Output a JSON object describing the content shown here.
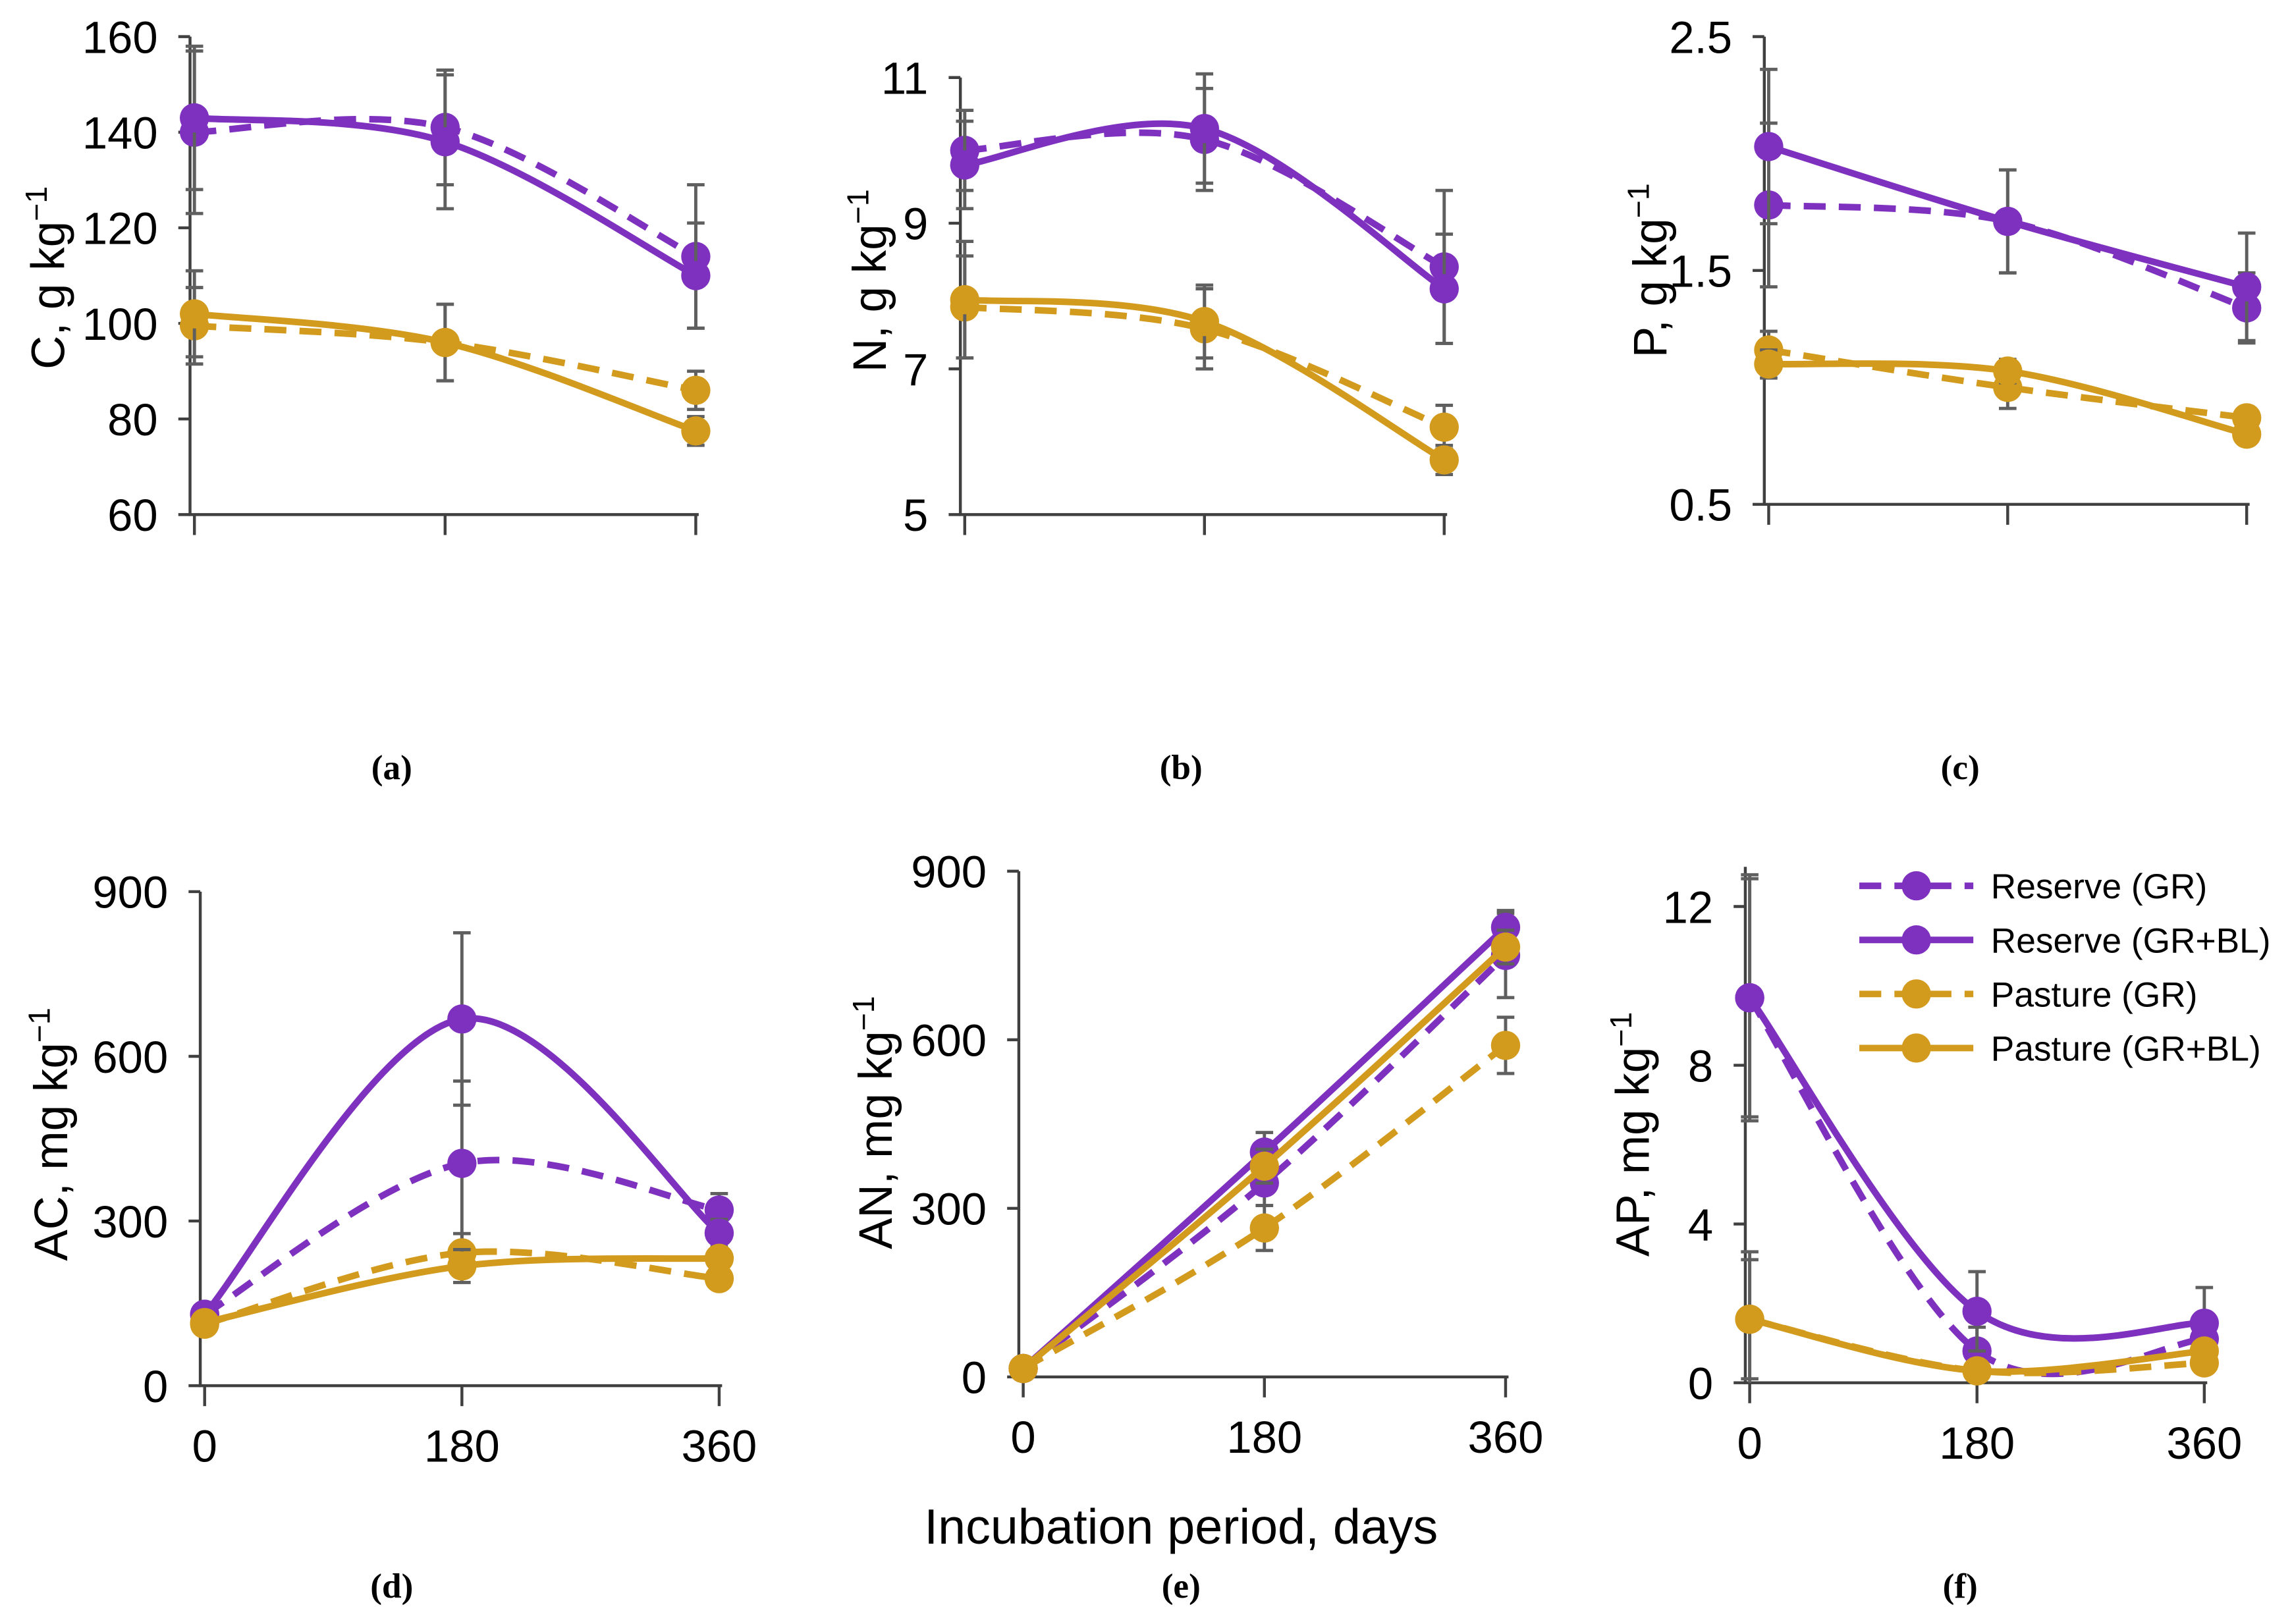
{
  "xlabel": "Incubation period, days",
  "legend": {
    "items": [
      {
        "name": "Reserve (GR)",
        "color": "#7e30be",
        "dashed": true
      },
      {
        "name": "Reserve (GR+BL)",
        "color": "#7e30be",
        "dashed": false
      },
      {
        "name": "Pasture (GR)",
        "color": "#d39b1e",
        "dashed": true
      },
      {
        "name": "Pasture (GR+BL)",
        "color": "#d39b1e",
        "dashed": false
      }
    ]
  },
  "chart_data": [
    {
      "type": "line",
      "panel_label": "(a)",
      "ylabel": "C, g kg",
      "ylabel_sup": "−1",
      "x": [
        0,
        180,
        360
      ],
      "ylim": [
        60,
        160
      ],
      "yticks": [
        60,
        80,
        100,
        120,
        140,
        160
      ],
      "series": [
        {
          "values": [
            140,
            141,
            114
          ],
          "errors": [
            17,
            12,
            15
          ]
        },
        {
          "values": [
            143,
            138,
            110
          ],
          "errors": [
            15,
            14,
            11
          ]
        },
        {
          "values": [
            99.5,
            96,
            86
          ],
          "errors": [
            8,
            8,
            4
          ]
        },
        {
          "values": [
            102,
            96,
            77.5
          ],
          "errors": [
            9,
            8,
            3
          ]
        }
      ]
    },
    {
      "type": "line",
      "panel_label": "(b)",
      "ylabel": "N, g kg",
      "ylabel_sup": "−1",
      "x": [
        0,
        180,
        360
      ],
      "ylim": [
        5,
        11
      ],
      "yticks": [
        5,
        7,
        9,
        11
      ],
      "series": [
        {
          "values": [
            10.0,
            10.15,
            8.4
          ],
          "errors": [
            0.55,
            0.7,
            1.05
          ]
        },
        {
          "values": [
            9.8,
            10.3,
            8.1
          ],
          "errors": [
            0.6,
            0.75,
            0.75
          ]
        },
        {
          "values": [
            7.85,
            7.55,
            6.2
          ],
          "errors": [
            0.7,
            0.55,
            0.3
          ]
        },
        {
          "values": [
            7.95,
            7.65,
            5.75
          ],
          "errors": [
            0.8,
            0.5,
            0.2
          ]
        }
      ]
    },
    {
      "type": "line",
      "panel_label": "(c)",
      "ylabel": "P, g kg",
      "ylabel_sup": "−1",
      "x": [
        0,
        180,
        360
      ],
      "ylim": [
        0.5,
        2.5
      ],
      "yticks": [
        0.5,
        1.5,
        2.5
      ],
      "series": [
        {
          "values": [
            1.78,
            1.71,
            1.34
          ],
          "errors": [
            0.35,
            0.22,
            0.15
          ]
        },
        {
          "values": [
            2.03,
            1.71,
            1.43
          ],
          "errors": [
            0.33,
            0.22,
            0.23
          ]
        },
        {
          "values": [
            1.16,
            1.0,
            0.87
          ],
          "errors": [
            0.08,
            0.09,
            0.04
          ]
        },
        {
          "values": [
            1.1,
            1.07,
            0.8
          ],
          "errors": [
            0.06,
            0.05,
            0.04
          ]
        }
      ]
    },
    {
      "type": "line",
      "panel_label": "(d)",
      "ylabel": "AC, mg kg",
      "ylabel_sup": "−1",
      "x": [
        0,
        180,
        360
      ],
      "ylim": [
        0,
        900
      ],
      "yticks": [
        0,
        300,
        600,
        900
      ],
      "series": [
        {
          "values": [
            130,
            405,
            320
          ],
          "errors": [
            15,
            150,
            30
          ]
        },
        {
          "values": [
            130,
            668,
            278
          ],
          "errors": [
            15,
            157,
            25
          ]
        },
        {
          "values": [
            112,
            242,
            195
          ],
          "errors": [
            10,
            35,
            10
          ]
        },
        {
          "values": [
            115,
            218,
            232
          ],
          "errors": [
            10,
            30,
            10
          ]
        }
      ]
    },
    {
      "type": "line",
      "panel_label": "(e)",
      "ylabel": "AN, mg kg",
      "ylabel_sup": "−1",
      "x": [
        0,
        180,
        360
      ],
      "ylim": [
        0,
        900
      ],
      "yticks": [
        0,
        300,
        600,
        900
      ],
      "series": [
        {
          "values": [
            15,
            345,
            750
          ],
          "errors": [
            5,
            40,
            75
          ]
        },
        {
          "values": [
            15,
            400,
            800
          ],
          "errors": [
            5,
            35,
            30
          ]
        },
        {
          "values": [
            15,
            265,
            590
          ],
          "errors": [
            5,
            40,
            50
          ]
        },
        {
          "values": [
            15,
            375,
            765
          ],
          "errors": [
            5,
            30,
            30
          ]
        }
      ]
    },
    {
      "type": "line",
      "panel_label": "(f)",
      "ylabel": "AP, mg kg",
      "ylabel_sup": "−1",
      "x": [
        0,
        180,
        360
      ],
      "ylim": [
        0,
        13
      ],
      "yticks": [
        0,
        4,
        8,
        12
      ],
      "series": [
        {
          "values": [
            9.7,
            0.8,
            1.1
          ],
          "errors": [
            3.1,
            0.6,
            0.5
          ]
        },
        {
          "values": [
            9.7,
            1.8,
            1.5
          ],
          "errors": [
            3.0,
            1.0,
            0.9
          ]
        },
        {
          "values": [
            1.6,
            0.3,
            0.5
          ],
          "errors": [
            1.7,
            0.1,
            0.2
          ]
        },
        {
          "values": [
            1.6,
            0.3,
            0.8
          ],
          "errors": [
            1.5,
            0.1,
            0.2
          ]
        }
      ]
    }
  ]
}
